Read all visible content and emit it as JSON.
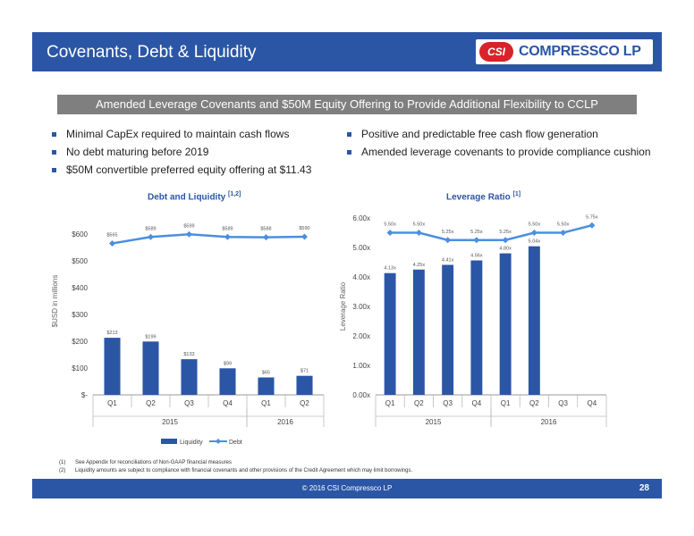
{
  "header": {
    "title": "Covenants, Debt & Liquidity",
    "logo_mark": "CSI",
    "logo_text": "COMPRESSCO LP"
  },
  "banner": "Amended Leverage Covenants and $50M Equity Offering to Provide Additional Flexibility to CCLP",
  "bullets_left": [
    "Minimal CapEx required to maintain cash flows",
    "No debt maturing before 2019",
    "$50M convertible preferred equity offering at $11.43"
  ],
  "bullets_right": [
    "Positive and predictable free cash flow generation",
    "Amended leverage covenants to provide compliance cushion"
  ],
  "colors": {
    "brand_blue": "#2b56a6",
    "line_blue": "#4a8fe0",
    "banner_gray": "#7f7f7f",
    "red": "#d8232a"
  },
  "charts": {
    "debt_title": "Debt and Liquidity",
    "debt_title_sup": "[1,2]",
    "leverage_title": "Leverage Ratio",
    "leverage_title_sup": "[1]"
  },
  "chart_data": [
    {
      "type": "bar",
      "title": "Debt and Liquidity [1,2]",
      "ylabel": "$USD in millions",
      "categories": [
        "Q1",
        "Q2",
        "Q3",
        "Q4",
        "Q1",
        "Q2"
      ],
      "year_groups": [
        {
          "label": "2015",
          "count": 4
        },
        {
          "label": "2016",
          "count": 2
        }
      ],
      "ylim": [
        0,
        700
      ],
      "ytick_values": [
        0,
        100,
        200,
        300,
        400,
        500,
        600
      ],
      "ytick_labels": [
        "$-",
        "$100",
        "$200",
        "$300",
        "$400",
        "$500",
        "$600"
      ],
      "series": [
        {
          "name": "Liquidity",
          "kind": "bar",
          "values": [
            213,
            199,
            133,
            99,
            65,
            71
          ],
          "labels": [
            "$213",
            "$199",
            "$133",
            "$99",
            "$65",
            "$71"
          ]
        },
        {
          "name": "Debt",
          "kind": "line",
          "values": [
            565,
            589,
            599,
            589,
            588,
            590
          ],
          "labels": [
            "$565",
            "$589",
            "$599",
            "$589",
            "$588",
            "$590"
          ]
        }
      ],
      "legend": "bottom"
    },
    {
      "type": "bar",
      "title": "Leverage Ratio [1]",
      "ylabel": "Leverage Ratio",
      "categories": [
        "Q1",
        "Q2",
        "Q3",
        "Q4",
        "Q1",
        "Q2",
        "Q3",
        "Q4"
      ],
      "year_groups": [
        {
          "label": "2015",
          "count": 4
        },
        {
          "label": "2016",
          "count": 4
        }
      ],
      "ylim": [
        0,
        6
      ],
      "ytick_values": [
        0,
        1,
        2,
        3,
        4,
        5,
        6
      ],
      "ytick_labels": [
        "0.00x",
        "1.00x",
        "2.00x",
        "3.00x",
        "4.00x",
        "5.00x",
        "6.00x"
      ],
      "series": [
        {
          "kind": "bar",
          "values": [
            4.13,
            4.25,
            4.41,
            4.56,
            4.8,
            5.04,
            null,
            null
          ],
          "labels": [
            "4.13x",
            "4.25x",
            "4.41x",
            "4.56x",
            "4.80x",
            "5.04x",
            "",
            ""
          ]
        },
        {
          "kind": "line",
          "values": [
            5.5,
            5.5,
            5.25,
            5.25,
            5.25,
            5.5,
            5.5,
            5.75
          ],
          "labels": [
            "5.50x",
            "5.50x",
            "5.25x",
            "5.25x",
            "5.25x",
            "5.50x",
            "5.50x",
            "5.75x"
          ]
        }
      ]
    }
  ],
  "footnotes": [
    {
      "num": "(1)",
      "text": "See Appendix for reconciliations of Non-GAAP financial measures"
    },
    {
      "num": "(2)",
      "text": "Liquidity amounts are subject to compliance with financial covenants and other provisions of the Credit Agreement which may limit borrowings."
    }
  ],
  "footer": {
    "text": "© 2016 CSI Compressco LP",
    "page": "28"
  }
}
